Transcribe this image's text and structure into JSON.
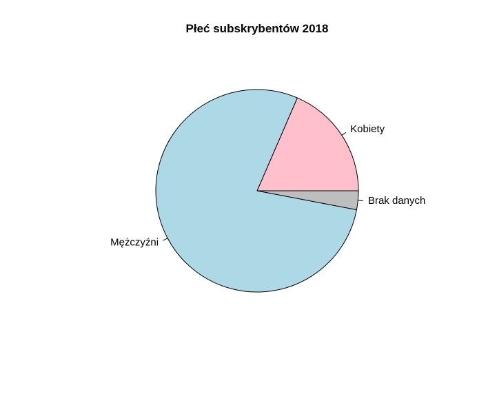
{
  "chart_data": {
    "type": "pie",
    "title": "Płeć subskrybentów 2018",
    "slices": [
      {
        "label": "Kobiety",
        "value": 18.5,
        "color": "#FFC0CB"
      },
      {
        "label": "Mężczyźni",
        "value": 78.5,
        "color": "#ADD8E6"
      },
      {
        "label": "Brak danych",
        "value": 3.0,
        "color": "#BEBEBE"
      }
    ]
  }
}
